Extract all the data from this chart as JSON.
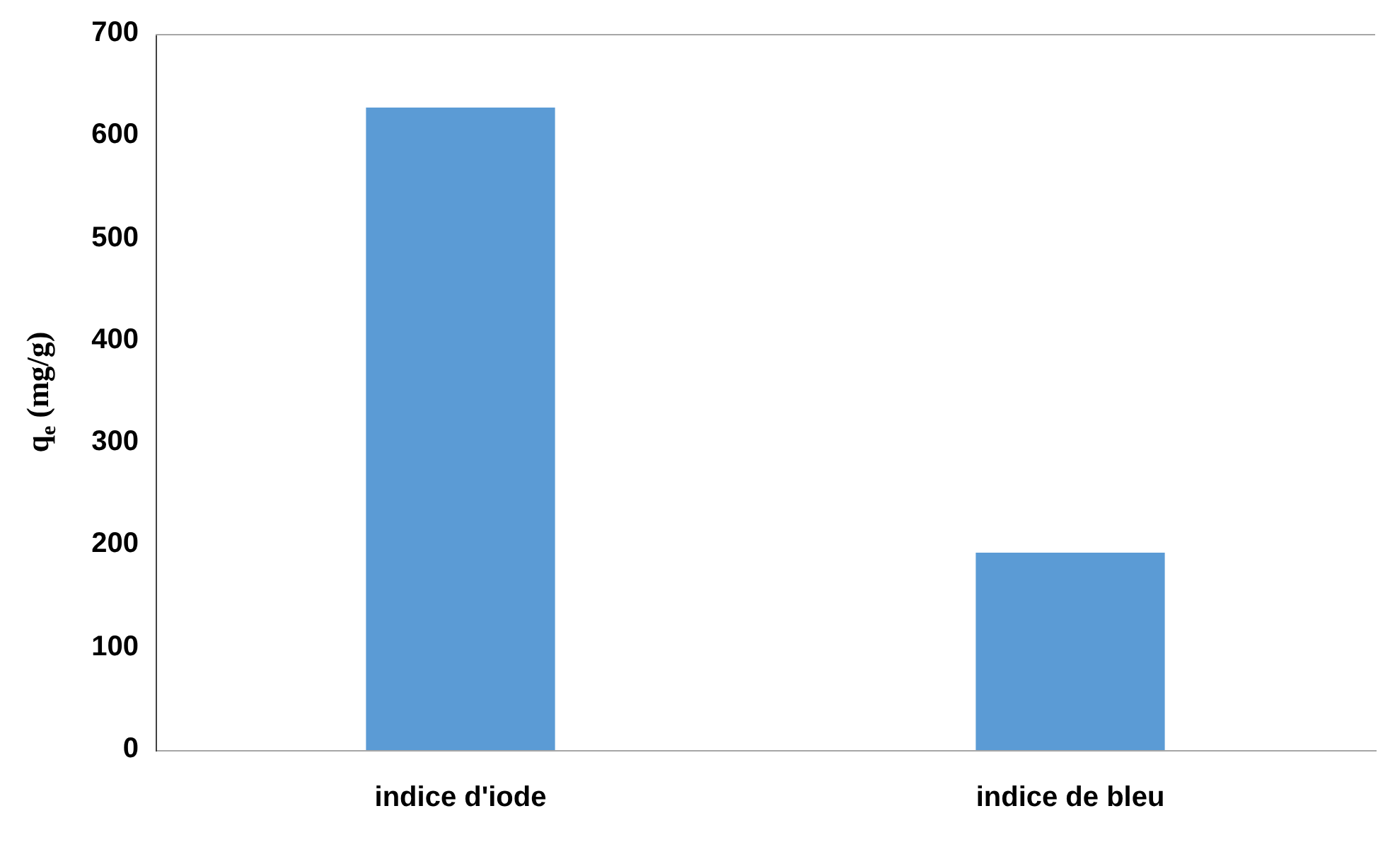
{
  "chart_data": {
    "type": "bar",
    "ylabel": "q$_{e}$ (mg/g)",
    "categories": [
      "indice d'iode",
      "indice de bleu"
    ],
    "values": [
      628,
      193
    ],
    "color": "#5b9bd5",
    "ylim": [
      0,
      700
    ],
    "yticks": [
      0,
      100,
      200,
      300,
      400,
      500,
      600,
      700
    ],
    "grid": false,
    "legend": false
  }
}
